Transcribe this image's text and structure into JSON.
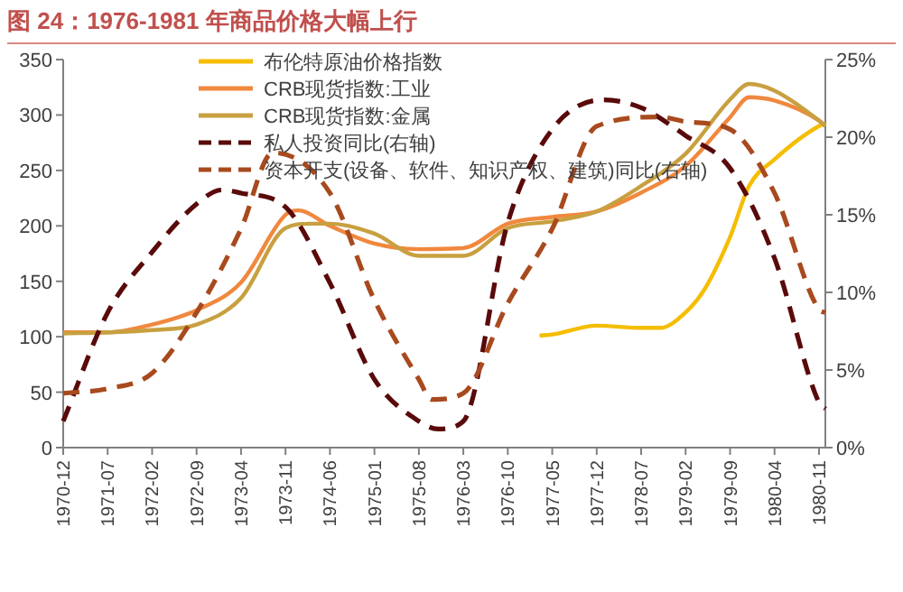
{
  "chart_data": {
    "type": "line",
    "title": "图 24：1976-1981 年商品价格大幅上行",
    "xlim": [
      "1970-12",
      "1980-12"
    ],
    "xticks": [
      {
        "value": "1970-12",
        "label": "1970-12"
      },
      {
        "value": "1971-07",
        "label": "1971-07"
      },
      {
        "value": "1972-02",
        "label": "1972-02"
      },
      {
        "value": "1972-09",
        "label": "1972-09"
      },
      {
        "value": "1973-04",
        "label": "1973-04"
      },
      {
        "value": "1973-11",
        "label": "1973-11"
      },
      {
        "value": "1974-06",
        "label": "1974-06"
      },
      {
        "value": "1975-01",
        "label": "1975-01"
      },
      {
        "value": "1975-08",
        "label": "1975-08"
      },
      {
        "value": "1976-03",
        "label": "1976-03"
      },
      {
        "value": "1976-10",
        "label": "1976-10"
      },
      {
        "value": "1977-05",
        "label": "1977-05"
      },
      {
        "value": "1977-12",
        "label": "1977-12"
      },
      {
        "value": "1978-07",
        "label": "1978-07"
      },
      {
        "value": "1979-02",
        "label": "1979-02"
      },
      {
        "value": "1979-09",
        "label": "1979-09"
      },
      {
        "value": "1980-04",
        "label": "1980-04"
      },
      {
        "value": "1980-11",
        "label": "1980-11"
      }
    ],
    "ylim": [
      0,
      350
    ],
    "yticks": [
      0,
      50,
      100,
      150,
      200,
      250,
      300,
      350
    ],
    "y2lim": [
      0,
      25
    ],
    "y2ticks": [
      {
        "value": 0,
        "label": "0%"
      },
      {
        "value": 5,
        "label": "5%"
      },
      {
        "value": 10,
        "label": "10%"
      },
      {
        "value": 15,
        "label": "15%"
      },
      {
        "value": 20,
        "label": "20%"
      },
      {
        "value": 25,
        "label": "25%"
      }
    ],
    "grid": false,
    "legend": "top",
    "marker": "none",
    "series": [
      {
        "name": "布伦特原油价格指数",
        "color": "#f5bd00",
        "line_style": "solid",
        "x": [
          "1977-03",
          "1977-05",
          "1977-12",
          "1978-07",
          "1978-10",
          "1979-02",
          "1979-05",
          "1979-09",
          "1979-12",
          "1980-04",
          "1980-11",
          "1980-12"
        ],
        "values": [
          101,
          102,
          110,
          108,
          108,
          122,
          143,
          190,
          236,
          260,
          290,
          292
        ]
      },
      {
        "name": "CRB现货指数:工业",
        "color": "#f0883e",
        "line_style": "solid",
        "x": [
          "1970-12",
          "1971-07",
          "1972-02",
          "1972-09",
          "1973-04",
          "1973-11",
          "1974-01",
          "1974-06",
          "1975-01",
          "1975-08",
          "1976-03",
          "1976-10",
          "1977-05",
          "1977-12",
          "1978-07",
          "1979-02",
          "1979-09",
          "1979-12",
          "1980-04",
          "1980-11",
          "1980-12"
        ],
        "values": [
          104,
          104,
          111,
          124,
          149,
          210,
          214,
          200,
          184,
          179,
          180,
          202,
          208,
          213,
          230,
          254,
          298,
          316,
          313,
          295,
          290
        ]
      },
      {
        "name": "CRB现货指数:金属",
        "color": "#c8a040",
        "line_style": "solid",
        "x": [
          "1970-12",
          "1971-07",
          "1972-02",
          "1972-09",
          "1973-04",
          "1973-11",
          "1974-03",
          "1974-06",
          "1975-01",
          "1975-08",
          "1976-03",
          "1976-10",
          "1977-05",
          "1977-12",
          "1978-07",
          "1979-02",
          "1979-09",
          "1979-12",
          "1980-04",
          "1980-11",
          "1980-12"
        ],
        "values": [
          103,
          104,
          106,
          111,
          135,
          198,
          202,
          202,
          193,
          173,
          173,
          198,
          204,
          213,
          236,
          265,
          314,
          328,
          322,
          295,
          290
        ]
      },
      {
        "name": "私人投资同比(右轴)",
        "color": "#5a0a0a",
        "line_style": "dashed",
        "axis": "y2",
        "x": [
          "1970-12",
          "1971-07",
          "1972-02",
          "1972-09",
          "1973-01",
          "1973-04",
          "1973-11",
          "1974-06",
          "1975-01",
          "1975-08",
          "1975-11",
          "1976-03",
          "1976-10",
          "1977-05",
          "1978-01",
          "1978-07",
          "1979-02",
          "1979-09",
          "1980-04",
          "1980-11",
          "1980-12"
        ],
        "values": [
          1.7,
          8.7,
          12.6,
          15.7,
          16.6,
          16.4,
          15.5,
          10.6,
          4.4,
          1.7,
          1.2,
          1.7,
          14.5,
          20.5,
          22.4,
          21.9,
          20.1,
          18,
          12.2,
          2.9,
          2.5
        ]
      },
      {
        "name": "资本开支(设备、软件、知识产权、建筑)同比(右轴)",
        "color": "#a84a1e",
        "line_style": "dashed",
        "axis": "y2",
        "x": [
          "1970-12",
          "1971-07",
          "1972-02",
          "1972-09",
          "1973-04",
          "1973-09",
          "1974-06",
          "1975-01",
          "1975-08",
          "1975-10",
          "1976-03",
          "1976-10",
          "1977-05",
          "1977-12",
          "1978-10",
          "1979-02",
          "1979-09",
          "1980-04",
          "1980-11",
          "1980-12"
        ],
        "values": [
          3.5,
          3.8,
          4.8,
          8.7,
          14.1,
          19,
          16.4,
          9.5,
          4.4,
          3.1,
          3.5,
          9.3,
          14.1,
          20.7,
          21.3,
          21,
          20.5,
          16.4,
          8.9,
          8.7
        ]
      }
    ]
  }
}
